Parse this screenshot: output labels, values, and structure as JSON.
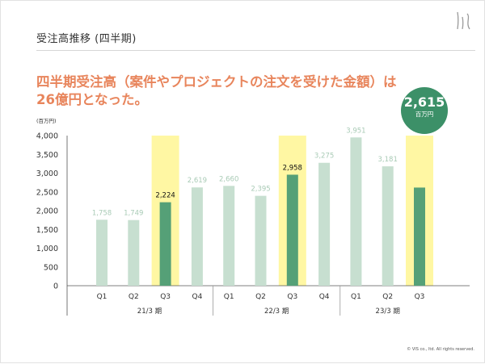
{
  "header": {
    "title": "受注高推移 (四半期)"
  },
  "headline": {
    "line1": "四半期受注高（案件やプロジェクトの注文を受けた金額）は",
    "line2": "26億円となった。"
  },
  "badge": {
    "value": "2,615",
    "unit": "百万円"
  },
  "colors": {
    "bar_light": "#c7dfd0",
    "bar_dark": "#55a077",
    "highlight": "#fff7a3",
    "headline": "#e8855c",
    "badge": "#3c9068"
  },
  "chart_data": {
    "type": "bar",
    "title": "受注高推移 (四半期)",
    "unit_label": "(百万円)",
    "ylim": [
      0,
      4000
    ],
    "yticks": [
      0,
      500,
      1000,
      1500,
      2000,
      2500,
      3000,
      3500,
      4000
    ],
    "ytick_labels": [
      "0",
      "500",
      "1,000",
      "1,500",
      "2,000",
      "2,500",
      "3,000",
      "3,500",
      "4,000"
    ],
    "categories": [
      "Q1",
      "Q2",
      "Q3",
      "Q4",
      "Q1",
      "Q2",
      "Q3",
      "Q4",
      "Q1",
      "Q2",
      "Q3"
    ],
    "values": [
      1758,
      1749,
      2224,
      2619,
      2660,
      2395,
      2958,
      3275,
      3951,
      3181,
      2615
    ],
    "value_labels": [
      "1,758",
      "1,749",
      "2,224",
      "2,619",
      "2,660",
      "2,395",
      "2,958",
      "3,275",
      "3,951",
      "3,181",
      ""
    ],
    "highlighted": [
      false,
      false,
      true,
      false,
      false,
      false,
      true,
      false,
      false,
      false,
      true
    ],
    "groups": [
      {
        "label": "21/3 期",
        "count": 4
      },
      {
        "label": "22/3 期",
        "count": 4
      },
      {
        "label": "23/3 期",
        "count": 3
      }
    ]
  },
  "footer": {
    "copyright": "© VIS co., ltd. All rights reserved."
  }
}
